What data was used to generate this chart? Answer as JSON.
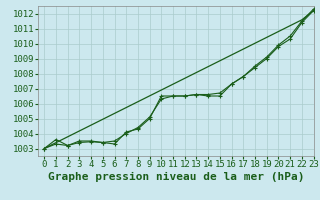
{
  "title": "Graphe pression niveau de la mer (hPa)",
  "xlim": [
    -0.5,
    23
  ],
  "ylim": [
    1002.5,
    1012.5
  ],
  "yticks": [
    1003,
    1004,
    1005,
    1006,
    1007,
    1008,
    1009,
    1010,
    1011,
    1012
  ],
  "xticks": [
    0,
    1,
    2,
    3,
    4,
    5,
    6,
    7,
    8,
    9,
    10,
    11,
    12,
    13,
    14,
    15,
    16,
    17,
    18,
    19,
    20,
    21,
    22,
    23
  ],
  "bg_color": "#cce8ee",
  "grid_color": "#aacccc",
  "line_color": "#1a5e1a",
  "line_straight": [
    1003.0,
    1003.39,
    1003.78,
    1004.17,
    1004.56,
    1004.95,
    1005.34,
    1005.73,
    1006.12,
    1006.51,
    1006.9,
    1007.29,
    1007.68,
    1008.07,
    1008.46,
    1008.85,
    1009.24,
    1009.63,
    1010.02,
    1010.41,
    1010.8,
    1011.19,
    1011.58,
    1012.2
  ],
  "line_measured": [
    1003.0,
    1003.6,
    1003.2,
    1003.5,
    1003.5,
    1003.4,
    1003.3,
    1004.1,
    1004.3,
    1005.0,
    1006.5,
    1006.5,
    1006.5,
    1006.6,
    1006.5,
    1006.5,
    1007.3,
    1007.8,
    1008.4,
    1009.0,
    1009.8,
    1010.3,
    1011.4,
    1012.2
  ],
  "line_smooth": [
    1003.0,
    1003.3,
    1003.2,
    1003.4,
    1003.45,
    1003.4,
    1003.5,
    1004.0,
    1004.4,
    1005.1,
    1006.3,
    1006.5,
    1006.5,
    1006.6,
    1006.6,
    1006.7,
    1007.3,
    1007.8,
    1008.5,
    1009.1,
    1009.9,
    1010.5,
    1011.5,
    1012.3
  ],
  "font_size_title": 8,
  "font_size_tick": 6.5
}
